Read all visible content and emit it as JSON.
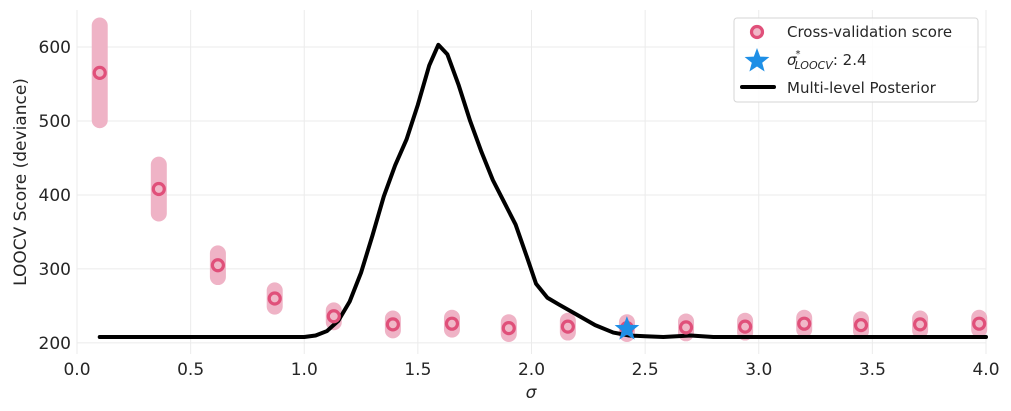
{
  "chart_data": {
    "type": "scatter",
    "title": "",
    "xlabel": "σ",
    "ylabel": "LOOCV Score (deviance)",
    "xlim": [
      0.0,
      4.0
    ],
    "ylim": [
      185,
      650
    ],
    "xticks": [
      "0.0",
      "0.5",
      "1.0",
      "1.5",
      "2.0",
      "2.5",
      "3.0",
      "3.5",
      "4.0"
    ],
    "xtick_values": [
      0,
      0.5,
      1,
      1.5,
      2,
      2.5,
      3,
      3.5,
      4
    ],
    "yticks": [
      "200",
      "300",
      "400",
      "500",
      "600"
    ],
    "ytick_values": [
      200,
      300,
      400,
      500,
      600
    ],
    "grid": true,
    "legend_position": "top-right",
    "colors": {
      "cv_marker": "#e0507a",
      "cv_error": "#efb3c6",
      "star": "#1e8fe6",
      "posterior": "#000000",
      "grid": "#ebebeb"
    },
    "series": [
      {
        "name": "Cross-validation score",
        "kind": "scatter-errorbar",
        "x": [
          0.1,
          0.36,
          0.62,
          0.87,
          1.13,
          1.39,
          1.65,
          1.9,
          2.16,
          2.42,
          2.68,
          2.94,
          3.2,
          3.45,
          3.71,
          3.97
        ],
        "y": [
          565,
          408,
          305,
          260,
          236,
          225,
          226,
          220,
          222,
          220,
          221,
          222,
          226,
          224,
          225,
          226
        ],
        "err": [
          64,
          33,
          16,
          11,
          8,
          8,
          8,
          8,
          8,
          8,
          8,
          8,
          8,
          8,
          8,
          8
        ]
      },
      {
        "name": "Multi-level Posterior",
        "kind": "line",
        "x": [
          0.1,
          0.5,
          1.0,
          1.05,
          1.1,
          1.15,
          1.2,
          1.25,
          1.3,
          1.35,
          1.4,
          1.45,
          1.5,
          1.55,
          1.59,
          1.63,
          1.68,
          1.73,
          1.78,
          1.83,
          1.88,
          1.93,
          1.98,
          2.02,
          2.07,
          2.12,
          2.2,
          2.28,
          2.36,
          2.43,
          2.5,
          2.58,
          2.7,
          2.8,
          3.0,
          3.5,
          4.0
        ],
        "y": [
          208,
          208,
          208,
          210,
          216,
          230,
          256,
          295,
          345,
          398,
          440,
          475,
          522,
          575,
          603,
          590,
          548,
          500,
          458,
          420,
          390,
          360,
          316,
          280,
          261,
          252,
          238,
          224,
          214,
          210,
          209,
          208,
          210,
          208,
          208,
          208,
          208
        ]
      }
    ],
    "optimum": {
      "label_prefix": "σ",
      "label_sup": "*",
      "label_sub": "LOOCV",
      "label_value": ": 2.4",
      "x": 2.42,
      "y": 220
    }
  },
  "legend": {
    "items": [
      "Cross-validation score",
      "Multi-level Posterior"
    ]
  }
}
